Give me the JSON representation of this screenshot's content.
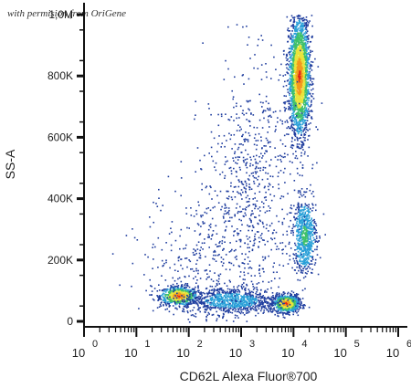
{
  "watermark": "with permision from OriGene",
  "chart_data": {
    "type": "scatter",
    "title": "",
    "xlabel": "CD62L  Alexa Fluor®700",
    "ylabel": "SS-A",
    "x_scale": "log",
    "xlim": [
      1,
      1000000
    ],
    "ylim": [
      0,
      1000000
    ],
    "y_ticks": [
      {
        "value": 0,
        "label": "0"
      },
      {
        "value": 200000,
        "label": "200K"
      },
      {
        "value": 400000,
        "label": "400K"
      },
      {
        "value": 600000,
        "label": "600K"
      },
      {
        "value": 800000,
        "label": "800K"
      },
      {
        "value": 1000000,
        "label": "1,0M"
      }
    ],
    "x_ticks": [
      {
        "base": "10",
        "exp": "0",
        "value": 1
      },
      {
        "base": "10",
        "exp": "1",
        "value": 10
      },
      {
        "base": "10",
        "exp": "2",
        "value": 100
      },
      {
        "base": "10",
        "exp": "3",
        "value": 1000
      },
      {
        "base": "10",
        "exp": "4",
        "value": 10000
      },
      {
        "base": "10",
        "exp": "5",
        "value": 100000
      },
      {
        "base": "10",
        "exp": "6",
        "value": 1000000
      }
    ],
    "colormap": [
      "#1f3d9e",
      "#2aa0d8",
      "#3fc06a",
      "#e8e43c",
      "#f39a1e",
      "#e0221a"
    ],
    "populations": [
      {
        "x_log10": 1.8,
        "y": 85000,
        "x_sd": 0.18,
        "y_sd": 15000,
        "count": 700,
        "peak_color": "#e0221a"
      },
      {
        "x_log10": 3.85,
        "y": 60000,
        "x_sd": 0.12,
        "y_sd": 14000,
        "count": 850,
        "peak_color": "#e0221a"
      },
      {
        "x_log10": 2.8,
        "y": 70000,
        "x_sd": 0.45,
        "y_sd": 22000,
        "count": 900,
        "peak_color": "#2aa0d8"
      },
      {
        "x_log10": 4.1,
        "y": 800000,
        "x_sd": 0.1,
        "y_sd": 95000,
        "count": 2400,
        "peak_color": "#e0221a"
      },
      {
        "x_log10": 4.2,
        "y": 280000,
        "x_sd": 0.11,
        "y_sd": 60000,
        "count": 700,
        "peak_color": "#3fc06a"
      },
      {
        "x_log10": 3.2,
        "y": 450000,
        "x_sd": 0.45,
        "y_sd": 200000,
        "count": 700,
        "peak_color": "#1f3d9e"
      },
      {
        "x_log10": 2.3,
        "y": 200000,
        "x_sd": 0.6,
        "y_sd": 120000,
        "count": 350,
        "peak_color": "#1f3d9e"
      }
    ]
  }
}
